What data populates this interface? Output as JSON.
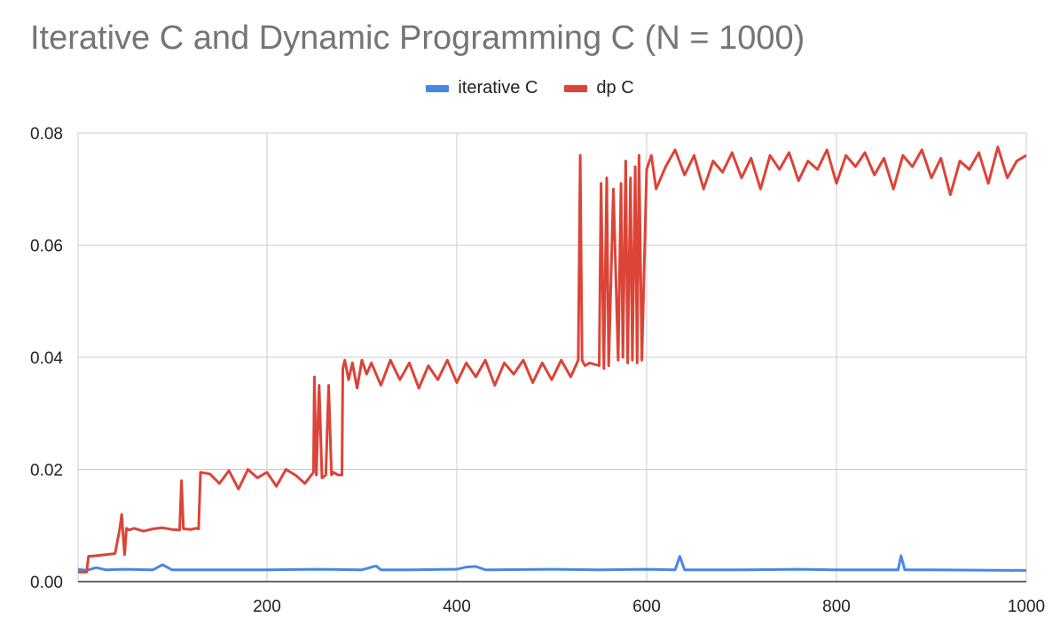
{
  "chart_data": {
    "type": "line",
    "title": "Iterative C and Dynamic Programming C (N = 1000)",
    "xlabel": "",
    "ylabel": "",
    "xlim": [
      1,
      1000
    ],
    "ylim": [
      0,
      0.08
    ],
    "x_ticks": [
      200,
      400,
      600,
      800,
      1000
    ],
    "x_tick_labels": [
      "200",
      "400",
      "600",
      "800",
      "1000"
    ],
    "y_ticks": [
      0,
      0.02,
      0.04,
      0.06,
      0.08
    ],
    "y_tick_labels": [
      "0.00",
      "0.02",
      "0.04",
      "0.06",
      "0.08"
    ],
    "grid": true,
    "legend_position": "top",
    "series": [
      {
        "name": "iterative C",
        "color": "#4a86e8",
        "x": [
          1,
          10,
          20,
          30,
          50,
          80,
          90,
          100,
          150,
          200,
          250,
          300,
          315,
          320,
          350,
          400,
          410,
          420,
          430,
          500,
          550,
          600,
          630,
          635,
          640,
          645,
          700,
          760,
          800,
          865,
          868,
          872,
          900,
          1000
        ],
        "y": [
          0.0022,
          0.002,
          0.0025,
          0.0021,
          0.0022,
          0.0021,
          0.003,
          0.0021,
          0.0021,
          0.0021,
          0.0022,
          0.0021,
          0.0028,
          0.0021,
          0.0021,
          0.0022,
          0.0026,
          0.0027,
          0.0021,
          0.0022,
          0.0021,
          0.0022,
          0.0021,
          0.0045,
          0.0021,
          0.0021,
          0.0021,
          0.0022,
          0.0021,
          0.0021,
          0.0046,
          0.0021,
          0.0021,
          0.002
        ]
      },
      {
        "name": "dp C",
        "color": "#db4437",
        "x": [
          1,
          10,
          12,
          20,
          30,
          40,
          45,
          47,
          50,
          52,
          55,
          60,
          70,
          80,
          90,
          100,
          108,
          110,
          112,
          120,
          125,
          128,
          130,
          140,
          150,
          160,
          170,
          180,
          190,
          200,
          210,
          220,
          230,
          240,
          249,
          250,
          252,
          255,
          258,
          262,
          265,
          268,
          270,
          275,
          279,
          280,
          282,
          286,
          290,
          295,
          300,
          305,
          310,
          320,
          330,
          340,
          350,
          360,
          370,
          380,
          390,
          400,
          410,
          420,
          430,
          440,
          450,
          460,
          470,
          480,
          490,
          500,
          510,
          520,
          528,
          530,
          532,
          535,
          540,
          550,
          552,
          555,
          558,
          560,
          565,
          570,
          573,
          575,
          578,
          580,
          583,
          585,
          588,
          590,
          592,
          595,
          600,
          605,
          610,
          620,
          630,
          640,
          650,
          660,
          670,
          680,
          690,
          700,
          710,
          720,
          730,
          740,
          750,
          760,
          770,
          780,
          790,
          800,
          810,
          820,
          830,
          840,
          850,
          860,
          870,
          880,
          890,
          900,
          910,
          920,
          930,
          940,
          950,
          960,
          970,
          980,
          990,
          1000
        ],
        "y": [
          0.0017,
          0.0017,
          0.0045,
          0.0046,
          0.0048,
          0.005,
          0.0095,
          0.012,
          0.0048,
          0.0095,
          0.0092,
          0.0095,
          0.009,
          0.0094,
          0.0096,
          0.0093,
          0.0092,
          0.018,
          0.0094,
          0.0093,
          0.0095,
          0.0094,
          0.0195,
          0.0192,
          0.0175,
          0.0198,
          0.0165,
          0.02,
          0.0185,
          0.0195,
          0.017,
          0.02,
          0.019,
          0.0175,
          0.0195,
          0.0365,
          0.019,
          0.035,
          0.0185,
          0.019,
          0.035,
          0.019,
          0.0195,
          0.019,
          0.019,
          0.038,
          0.0395,
          0.036,
          0.039,
          0.0345,
          0.0395,
          0.037,
          0.039,
          0.035,
          0.0395,
          0.036,
          0.039,
          0.0345,
          0.0385,
          0.036,
          0.0395,
          0.0355,
          0.039,
          0.0365,
          0.0395,
          0.035,
          0.039,
          0.037,
          0.0395,
          0.0355,
          0.039,
          0.036,
          0.0395,
          0.0365,
          0.0395,
          0.076,
          0.0395,
          0.0385,
          0.039,
          0.0385,
          0.071,
          0.038,
          0.072,
          0.0385,
          0.07,
          0.0395,
          0.071,
          0.04,
          0.075,
          0.039,
          0.072,
          0.0395,
          0.074,
          0.039,
          0.076,
          0.0395,
          0.0735,
          0.076,
          0.07,
          0.074,
          0.077,
          0.0725,
          0.076,
          0.07,
          0.075,
          0.073,
          0.0765,
          0.072,
          0.0755,
          0.07,
          0.076,
          0.0735,
          0.0765,
          0.0715,
          0.075,
          0.0735,
          0.077,
          0.071,
          0.076,
          0.074,
          0.0765,
          0.0725,
          0.0755,
          0.07,
          0.076,
          0.074,
          0.077,
          0.072,
          0.0755,
          0.069,
          0.075,
          0.0735,
          0.0765,
          0.071,
          0.0775,
          0.072,
          0.075,
          0.076
        ]
      }
    ]
  }
}
